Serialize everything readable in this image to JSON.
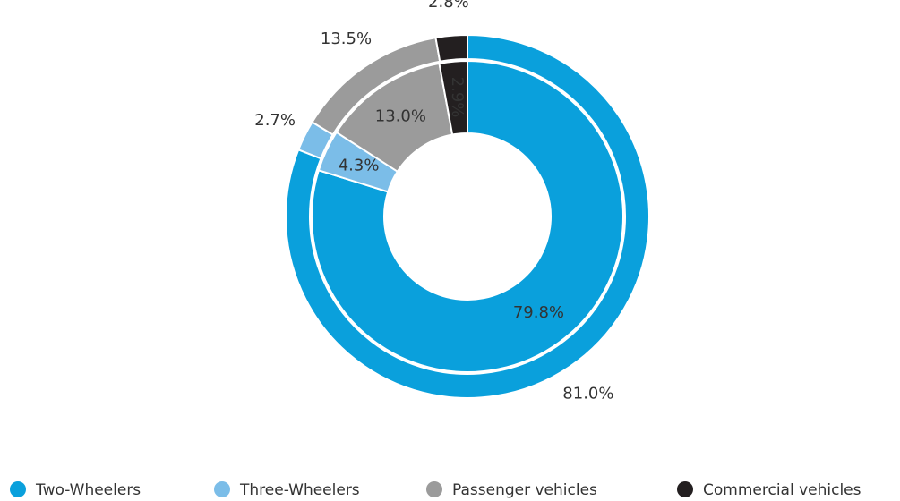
{
  "chart_data": {
    "type": "donut",
    "categories": [
      "Two-Wheelers",
      "Three-Wheelers",
      "Passenger vehicles",
      "Commercial vehicles"
    ],
    "colors": [
      "#0aa0dc",
      "#7bbde8",
      "#9b9b9b",
      "#231f20"
    ],
    "series": [
      {
        "values": [
          81.0,
          2.7,
          13.5,
          2.8
        ],
        "value_labels": [
          "81.0%",
          "2.7%",
          "13.5%",
          "2.8%"
        ]
      },
      {
        "values": [
          79.8,
          4.3,
          13.0,
          2.9
        ],
        "value_labels": [
          "79.8%",
          "4.3%",
          "13.0%",
          "2.9%"
        ]
      }
    ],
    "legend": "bottom"
  }
}
